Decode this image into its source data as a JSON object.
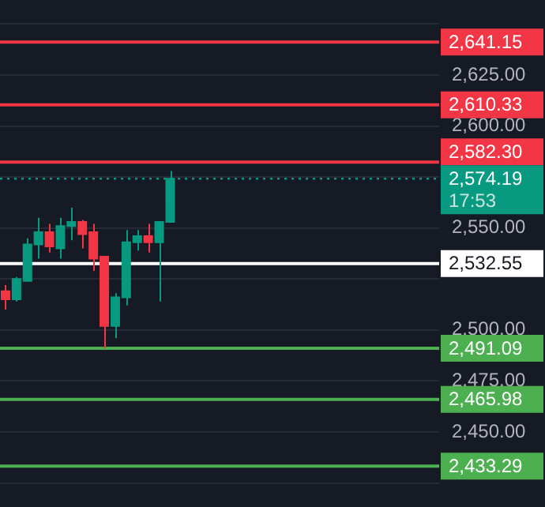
{
  "chart_data": {
    "type": "candlestick",
    "categories": [
      null,
      null,
      null,
      null,
      null,
      null,
      null,
      null,
      null,
      null,
      null,
      null,
      null,
      null,
      null,
      null,
      null,
      null,
      null,
      null,
      null,
      null,
      null,
      null,
      null,
      null,
      null,
      null,
      null,
      null,
      null,
      null,
      null,
      null,
      null,
      null,
      null,
      null,
      null,
      null
    ],
    "ohlc": [
      [
        2519,
        2522,
        2510,
        2515
      ],
      [
        2515,
        2526,
        2514,
        2525
      ],
      [
        2524,
        2545,
        2524,
        2542
      ],
      [
        2542,
        2555,
        2535,
        2548
      ],
      [
        2548,
        2552,
        2538,
        2541
      ],
      [
        2540,
        2555,
        2535,
        2551
      ],
      [
        2551,
        2560,
        2544,
        2553
      ],
      [
        2553,
        2554,
        2540,
        2547
      ],
      [
        2548,
        2552,
        2529,
        2535
      ],
      [
        2536,
        2536,
        2491,
        2502
      ],
      [
        2502,
        2518,
        2496,
        2516
      ],
      [
        2516,
        2549,
        2512,
        2543
      ],
      [
        2543,
        2549,
        2539,
        2546
      ],
      [
        2546,
        2552,
        2538,
        2543
      ],
      [
        2543,
        2553,
        2514,
        2553
      ],
      [
        2553,
        2578,
        2553,
        2574.19
      ],
      null,
      null,
      null,
      null,
      null,
      null,
      null,
      null,
      null,
      null,
      null,
      null,
      null,
      null,
      null,
      null,
      null,
      null,
      null,
      null,
      null,
      null,
      null,
      null
    ],
    "colors": [
      "#f23645",
      "#089981",
      "#089981",
      "#089981",
      "#f23645",
      "#089981",
      "#089981",
      "#f23645",
      "#f23645",
      "#f23645",
      "#089981",
      "#089981",
      "#089981",
      "#f23645",
      "#089981",
      "#089981",
      null,
      null,
      null,
      null,
      null,
      null,
      null,
      null,
      null,
      null,
      null,
      null,
      null,
      null,
      null,
      null,
      null,
      null,
      null,
      null,
      null,
      null,
      null,
      null
    ],
    "ylim": [
      2425,
      2650
    ],
    "yticks": [
      {
        "value": 2425,
        "label": null
      },
      {
        "value": 2450,
        "label": "2,450.00"
      },
      {
        "value": 2475,
        "label": "2,475.00"
      },
      {
        "value": 2500,
        "label": "2,500.00"
      },
      {
        "value": 2525,
        "label": null
      },
      {
        "value": 2550,
        "label": "2,550.00"
      },
      {
        "value": 2575,
        "label": null
      },
      {
        "value": 2600,
        "label": "2,600.00"
      },
      {
        "value": 2625,
        "label": "2,625.00"
      },
      {
        "value": 2650,
        "label": null
      }
    ],
    "tick_labels": "y",
    "grid": "y",
    "legend": false,
    "ref_lines": [
      {
        "axis": "y",
        "value": 2641.15,
        "label": "2,641.15",
        "color": "#f23645"
      },
      {
        "axis": "y",
        "value": 2610.33,
        "label": "2,610.33",
        "color": "#f23645"
      },
      {
        "axis": "y",
        "value": 2582.3,
        "label": "2,582.30",
        "color": "#f23645"
      },
      {
        "axis": "y",
        "value": 2574.19,
        "label": "2,574.19",
        "color": "#089981",
        "line_style": "dotted"
      },
      {
        "axis": "y",
        "value": 2532.55,
        "label": "2,532.55",
        "color": "#ffffff"
      },
      {
        "axis": "y",
        "value": 2491.09,
        "label": "2,491.09",
        "color": "#4caf50"
      },
      {
        "axis": "y",
        "value": 2465.98,
        "label": "2,465.98",
        "color": "#4caf50"
      },
      {
        "axis": "y",
        "value": 2433.29,
        "label": "2,433.29",
        "color": "#4caf50"
      }
    ],
    "annotations": [
      "17:53"
    ]
  }
}
